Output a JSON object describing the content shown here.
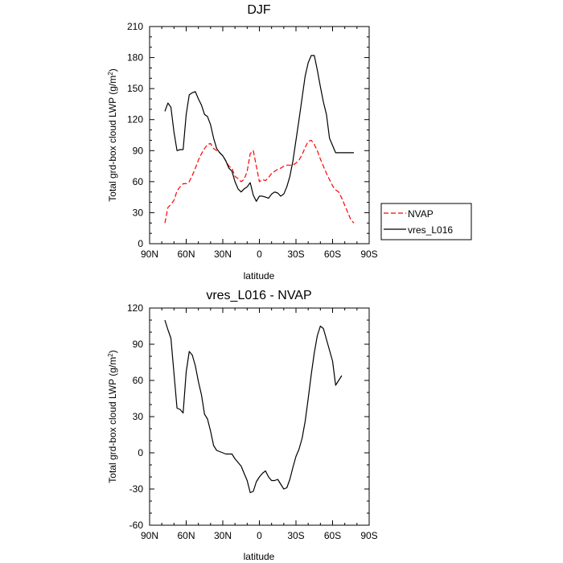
{
  "chart_data": [
    {
      "type": "line",
      "title": "DJF",
      "xlabel": "latitude",
      "ylabel_main": "Total grd-box cloud LWP (g/m",
      "ylabel_sup": "2",
      "ylabel_close": ")",
      "xlim": [
        90,
        -90
      ],
      "ylim": [
        0,
        210
      ],
      "x_ticks": [
        {
          "value": 90,
          "label": "90N"
        },
        {
          "value": 60,
          "label": "60N"
        },
        {
          "value": 30,
          "label": "30N"
        },
        {
          "value": 0,
          "label": "0"
        },
        {
          "value": -30,
          "label": "30S"
        },
        {
          "value": -60,
          "label": "60S"
        },
        {
          "value": -90,
          "label": "90S"
        }
      ],
      "y_ticks": [
        0,
        30,
        60,
        90,
        120,
        150,
        180,
        210
      ],
      "legend": {
        "placement": "right-outside",
        "entries": [
          "NVAP",
          "vres_L016"
        ]
      },
      "series": [
        {
          "name": "NVAP",
          "color": "#ff0000",
          "dash": "dashed",
          "x": [
            77.5,
            75,
            72.5,
            70,
            67.5,
            65,
            62.5,
            60,
            57.5,
            55,
            52.5,
            50,
            47.5,
            45,
            42.5,
            40,
            37.5,
            35,
            32.5,
            30,
            27.5,
            25,
            22.5,
            20,
            17.5,
            15,
            12.5,
            10,
            7.5,
            5,
            2.5,
            0,
            -2.5,
            -5,
            -7.5,
            -10,
            -12.5,
            -15,
            -17.5,
            -20,
            -22.5,
            -25,
            -27.5,
            -30,
            -32.5,
            -35,
            -37.5,
            -40,
            -42.5,
            -45,
            -47.5,
            -50,
            -52.5,
            -55,
            -57.5,
            -60,
            -62.5,
            -65,
            -67.5,
            -70,
            -72.5,
            -75,
            -77.5
          ],
          "values": [
            20,
            35,
            38,
            42,
            51,
            55,
            58,
            58,
            60,
            66,
            73,
            81,
            87,
            92,
            96,
            97,
            92,
            90,
            88,
            85,
            80,
            75,
            73,
            65,
            63,
            60,
            62,
            70,
            87,
            90,
            75,
            60,
            62,
            61,
            64,
            68,
            70,
            72,
            73,
            75,
            76,
            76,
            76,
            78,
            81,
            86,
            93,
            99,
            100,
            96,
            90,
            82,
            75,
            68,
            62,
            56,
            52,
            50,
            44,
            37,
            30,
            23,
            20
          ]
        },
        {
          "name": "vres_L016",
          "color": "#000000",
          "dash": "solid",
          "x": [
            77.5,
            75,
            72.5,
            70,
            67.5,
            65,
            62.5,
            60,
            57.5,
            55,
            52.5,
            50,
            47.5,
            45,
            42.5,
            40,
            37.5,
            35,
            32.5,
            30,
            27.5,
            25,
            22.5,
            20,
            17.5,
            15,
            12.5,
            10,
            7.5,
            5,
            2.5,
            0,
            -2.5,
            -5,
            -7.5,
            -10,
            -12.5,
            -15,
            -17.5,
            -20,
            -22.5,
            -25,
            -27.5,
            -30,
            -32.5,
            -35,
            -37.5,
            -40,
            -42.5,
            -45,
            -47.5,
            -50,
            -52.5,
            -55,
            -57.5,
            -60,
            -62.5,
            -65,
            -67.5,
            -70,
            -72.5,
            -75,
            -77.5
          ],
          "values": [
            128,
            136,
            132,
            108,
            90,
            91,
            91,
            125,
            144,
            146,
            147,
            140,
            134,
            125,
            123,
            115,
            102,
            92,
            88,
            85,
            80,
            73,
            70,
            60,
            53,
            50,
            53,
            55,
            59,
            47,
            41,
            46,
            46,
            45,
            44,
            48,
            50,
            49,
            46,
            48,
            55,
            65,
            80,
            100,
            120,
            141,
            162,
            175,
            182,
            182,
            168,
            152,
            137,
            125,
            102,
            95,
            88,
            88,
            88,
            88,
            88,
            88,
            88
          ]
        }
      ]
    },
    {
      "type": "line",
      "title": "vres_L016 - NVAP",
      "xlabel": "latitude",
      "ylabel_main": "Total grd-box cloud LWP (g/m",
      "ylabel_sup": "2",
      "ylabel_close": ")",
      "xlim": [
        90,
        -90
      ],
      "ylim": [
        -60,
        120
      ],
      "x_ticks": [
        {
          "value": 90,
          "label": "90N"
        },
        {
          "value": 60,
          "label": "60N"
        },
        {
          "value": 30,
          "label": "30N"
        },
        {
          "value": 0,
          "label": "0"
        },
        {
          "value": -30,
          "label": "30S"
        },
        {
          "value": -60,
          "label": "60S"
        },
        {
          "value": -90,
          "label": "90S"
        }
      ],
      "y_ticks": [
        -60,
        -30,
        0,
        30,
        60,
        90,
        120
      ],
      "series": [
        {
          "name": "vres_L016 - NVAP",
          "color": "#000000",
          "dash": "solid",
          "x": [
            77.5,
            75,
            72.5,
            70,
            67.5,
            65,
            62.5,
            60,
            57.5,
            55,
            52.5,
            50,
            47.5,
            45,
            42.5,
            40,
            37.5,
            35,
            32.5,
            30,
            27.5,
            25,
            22.5,
            20,
            17.5,
            15,
            12.5,
            10,
            7.5,
            5,
            2.5,
            0,
            -2.5,
            -5,
            -7.5,
            -10,
            -12.5,
            -15,
            -17.5,
            -20,
            -22.5,
            -25,
            -27.5,
            -30,
            -32.5,
            -35,
            -37.5,
            -40,
            -42.5,
            -45,
            -47.5,
            -50,
            -52.5,
            -55,
            -57.5,
            -60,
            -62.5,
            -65,
            -67.5,
            -70,
            -72.5,
            -75,
            -77.5
          ],
          "values": [
            110,
            102,
            95,
            66,
            37,
            36,
            33,
            67,
            84,
            81,
            72,
            59,
            48,
            32,
            28,
            18,
            6,
            2,
            1,
            0,
            -1,
            -1,
            -1,
            -5,
            -8,
            -11,
            -17,
            -23,
            -33,
            -32,
            -24,
            -20,
            -17,
            -15,
            -20,
            -23,
            -23,
            -22,
            -26,
            -30,
            -29,
            -22,
            -12,
            -3,
            3,
            12,
            26,
            45,
            65,
            83,
            97,
            105,
            103,
            94,
            85,
            76,
            56,
            60,
            64,
            null,
            null,
            null,
            null
          ]
        }
      ]
    }
  ]
}
